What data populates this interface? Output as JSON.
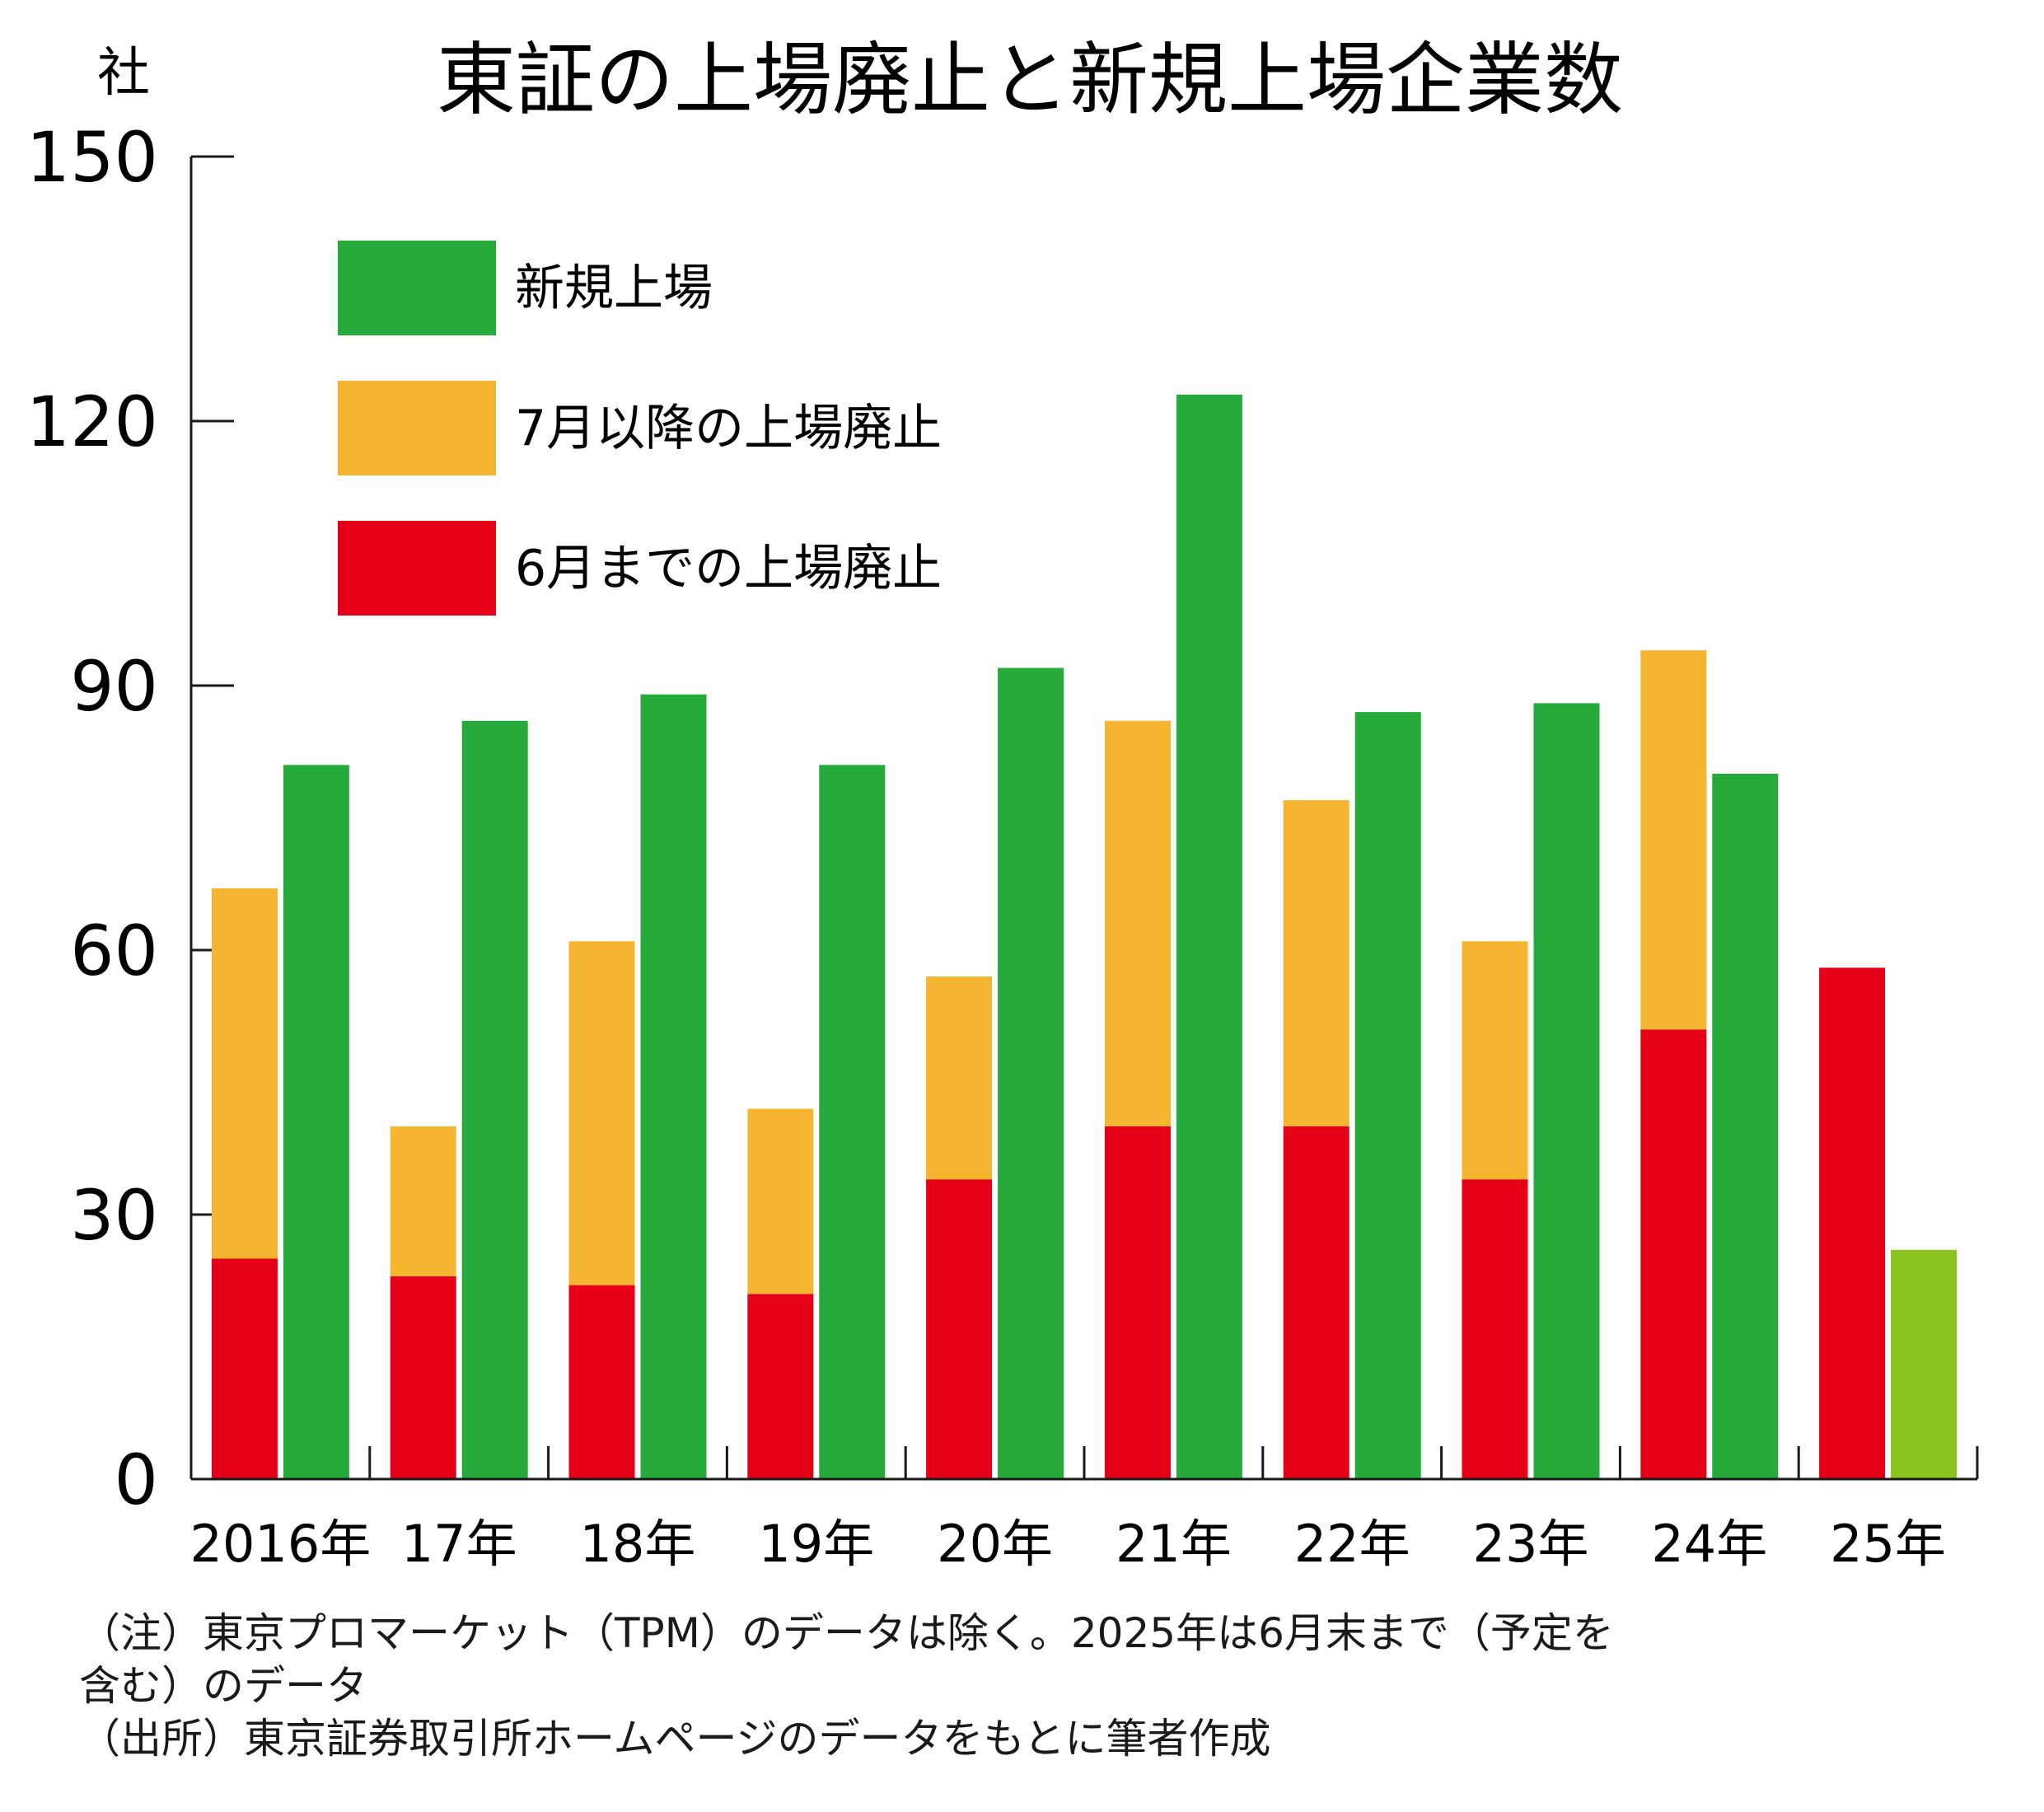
{
  "colors": {
    "new": "#25aa3b",
    "new_partial": "#8ac21f",
    "after_july": "#f5b530",
    "until_june": "#e50018",
    "axis": "#1a1a1a"
  },
  "chart_data": {
    "type": "bar",
    "title": "東証の上場廃止と新規上場企業数",
    "ylabel": "社",
    "xlabel": "",
    "ylim": [
      0,
      150
    ],
    "yticks": [
      0,
      30,
      60,
      90,
      120,
      150
    ],
    "grid": false,
    "legend_position": "top-left",
    "categories": [
      "2016年",
      "17年",
      "18年",
      "19年",
      "20年",
      "21年",
      "22年",
      "23年",
      "24年",
      "25年"
    ],
    "legend": [
      {
        "key": "new",
        "label": "新規上場"
      },
      {
        "key": "after_july",
        "label": "7月以降の上場廃止"
      },
      {
        "key": "until_june",
        "label": "6月までの上場廃止"
      }
    ],
    "series": [
      {
        "name": "6月までの上場廃止",
        "stack": "delisting",
        "values": [
          25,
          23,
          22,
          21,
          34,
          40,
          40,
          34,
          51,
          58
        ]
      },
      {
        "name": "7月以降の上場廃止",
        "stack": "delisting",
        "values": [
          42,
          17,
          39,
          21,
          23,
          46,
          37,
          27,
          43,
          0
        ]
      },
      {
        "name": "新規上場",
        "stack": "new",
        "values": [
          81,
          86,
          89,
          81,
          92,
          123,
          87,
          88,
          80,
          26
        ]
      }
    ]
  },
  "notes": [
    "（注）東京プロマーケット（TPM）のデータは除く。2025年は6月末まで（予定を",
    "含む）のデータ",
    "（出所）東京証券取引所ホームページのデータをもとに筆者作成"
  ]
}
